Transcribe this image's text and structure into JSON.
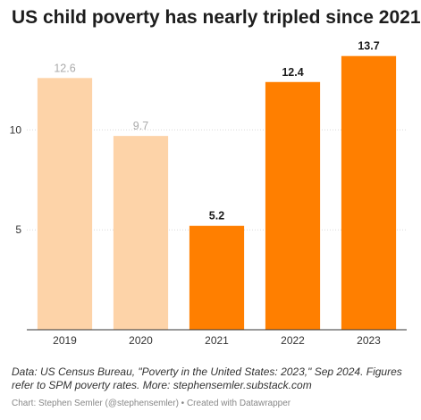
{
  "title": "US child poverty has nearly tripled since 2021",
  "notes": "Data: US Census Bureau, \"Poverty in the United States: 2023,\" Sep 2024. Figures refer to SPM poverty rates. More: stephensemler.substack.com",
  "credit": "Chart: Stephen Semler (@stephensemler) • Created with Datawrapper",
  "chart_data": {
    "type": "bar",
    "title": "US child poverty has nearly tripled since 2021",
    "categories": [
      "2019",
      "2020",
      "2021",
      "2022",
      "2023"
    ],
    "values": [
      12.6,
      9.7,
      5.2,
      12.4,
      13.7
    ],
    "value_labels": [
      "12.6",
      "9.7",
      "5.2",
      "12.4",
      "13.7"
    ],
    "colors": [
      "#fdd3a8",
      "#fdd3a8",
      "#ff7f00",
      "#ff7f00",
      "#ff7f00"
    ],
    "label_colors": [
      "#aaaaaa",
      "#aaaaaa",
      "#1d1d1d",
      "#1d1d1d",
      "#1d1d1d"
    ],
    "y_ticks": [
      5,
      10
    ],
    "y_tick_labels": [
      "5",
      "10"
    ],
    "ylim": [
      0,
      14
    ],
    "grid": true,
    "xlabel": "",
    "ylabel": ""
  }
}
